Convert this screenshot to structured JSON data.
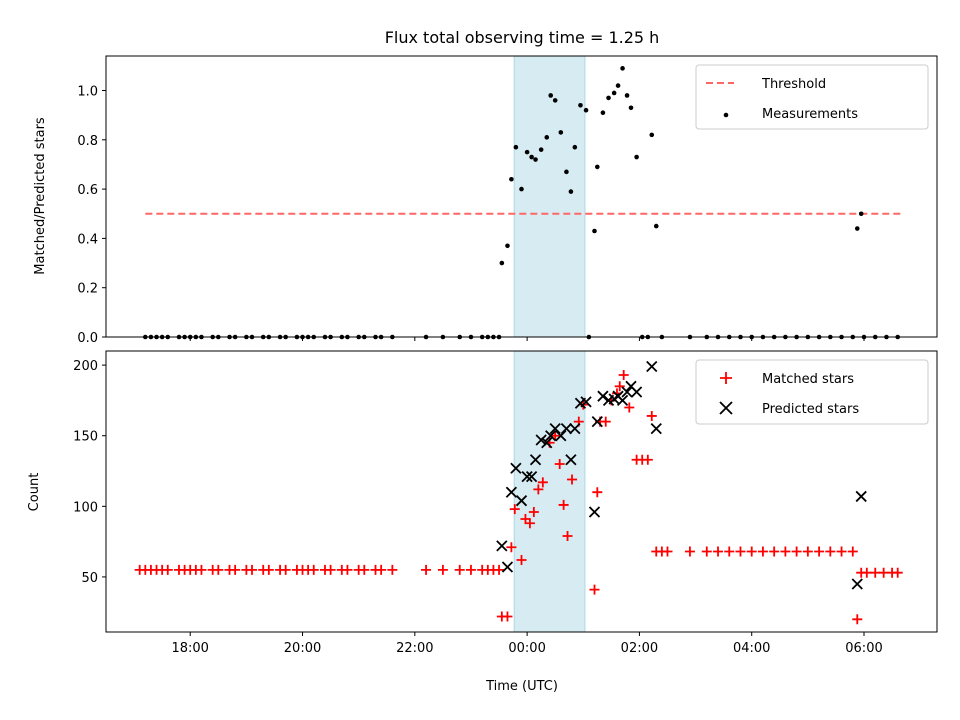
{
  "chart_data": [
    {
      "type": "scatter",
      "title": "Flux total observing time = 1.25 h",
      "ylabel": "Matched/Predicted stars",
      "xlabel": "",
      "xlim": [
        16.5,
        31.3
      ],
      "ylim": [
        0,
        1.14
      ],
      "yticks": [
        0,
        0.2,
        0.4,
        0.6,
        0.8,
        1.0
      ],
      "ytick_labels": [
        "0.0",
        "0.2",
        "0.4",
        "0.6",
        "0.8",
        "1.0"
      ],
      "xticks": [
        18,
        20,
        22,
        24,
        26,
        28,
        30
      ],
      "shaded_band": {
        "from": 23.77,
        "to": 25.03,
        "color": "#add8e6"
      },
      "threshold": {
        "name": "Threshold",
        "y": 0.5,
        "x_from": 17.2,
        "x_to": 30.7,
        "color": "#ff6666"
      },
      "series": [
        {
          "name": "Measurements",
          "color": "#000000",
          "points": [
            [
              17.2,
              0
            ],
            [
              17.3,
              0
            ],
            [
              17.4,
              0
            ],
            [
              17.5,
              0
            ],
            [
              17.6,
              0
            ],
            [
              17.8,
              0
            ],
            [
              17.9,
              0
            ],
            [
              18.0,
              0
            ],
            [
              18.1,
              0
            ],
            [
              18.2,
              0
            ],
            [
              18.4,
              0
            ],
            [
              18.5,
              0
            ],
            [
              18.7,
              0
            ],
            [
              18.8,
              0
            ],
            [
              19.0,
              0
            ],
            [
              19.1,
              0
            ],
            [
              19.3,
              0
            ],
            [
              19.4,
              0
            ],
            [
              19.6,
              0
            ],
            [
              19.7,
              0
            ],
            [
              19.9,
              0
            ],
            [
              20.0,
              0
            ],
            [
              20.1,
              0
            ],
            [
              20.2,
              0
            ],
            [
              20.4,
              0
            ],
            [
              20.5,
              0
            ],
            [
              20.7,
              0
            ],
            [
              20.8,
              0
            ],
            [
              21.0,
              0
            ],
            [
              21.1,
              0
            ],
            [
              21.3,
              0
            ],
            [
              21.4,
              0
            ],
            [
              21.6,
              0
            ],
            [
              22.2,
              0
            ],
            [
              22.5,
              0
            ],
            [
              22.8,
              0
            ],
            [
              23.0,
              0
            ],
            [
              23.2,
              0
            ],
            [
              23.3,
              0
            ],
            [
              23.4,
              0
            ],
            [
              23.5,
              0
            ],
            [
              23.55,
              0.3
            ],
            [
              23.65,
              0.37
            ],
            [
              23.72,
              0.64
            ],
            [
              23.8,
              0.77
            ],
            [
              23.9,
              0.6
            ],
            [
              24.0,
              0.75
            ],
            [
              24.08,
              0.73
            ],
            [
              24.15,
              0.72
            ],
            [
              24.25,
              0.76
            ],
            [
              24.35,
              0.81
            ],
            [
              24.42,
              0.98
            ],
            [
              24.5,
              0.96
            ],
            [
              24.6,
              0.83
            ],
            [
              24.7,
              0.67
            ],
            [
              24.78,
              0.59
            ],
            [
              24.85,
              0.77
            ],
            [
              24.95,
              0.94
            ],
            [
              25.05,
              0.92
            ],
            [
              25.2,
              0.43
            ],
            [
              25.25,
              0.69
            ],
            [
              25.35,
              0.91
            ],
            [
              25.45,
              0.97
            ],
            [
              25.55,
              0.99
            ],
            [
              25.62,
              1.02
            ],
            [
              25.7,
              1.09
            ],
            [
              25.78,
              0.98
            ],
            [
              25.85,
              0.93
            ],
            [
              25.95,
              0.73
            ],
            [
              26.22,
              0.82
            ],
            [
              26.3,
              0.45
            ],
            [
              25.1,
              0
            ],
            [
              26.05,
              0
            ],
            [
              26.15,
              0
            ],
            [
              26.4,
              0
            ],
            [
              26.9,
              0
            ],
            [
              27.2,
              0
            ],
            [
              27.4,
              0
            ],
            [
              27.6,
              0
            ],
            [
              27.8,
              0
            ],
            [
              28.0,
              0
            ],
            [
              28.2,
              0
            ],
            [
              28.4,
              0
            ],
            [
              28.6,
              0
            ],
            [
              28.8,
              0
            ],
            [
              29.0,
              0
            ],
            [
              29.2,
              0
            ],
            [
              29.4,
              0
            ],
            [
              29.6,
              0
            ],
            [
              29.8,
              0
            ],
            [
              29.88,
              0.44
            ],
            [
              29.95,
              0.5
            ],
            [
              30.0,
              0
            ],
            [
              30.2,
              0
            ],
            [
              30.4,
              0
            ],
            [
              30.6,
              0
            ]
          ]
        }
      ],
      "legend": {
        "placement": "top-right",
        "entries": [
          "Threshold",
          "Measurements"
        ]
      }
    },
    {
      "type": "scatter",
      "title": "",
      "ylabel": "Count",
      "xlabel": "Time (UTC)",
      "xlim": [
        16.5,
        31.3
      ],
      "ylim": [
        11,
        210
      ],
      "yticks": [
        50,
        100,
        150,
        200
      ],
      "ytick_labels": [
        "50",
        "100",
        "150",
        "200"
      ],
      "xticks": [
        18,
        20,
        22,
        24,
        26,
        28,
        30
      ],
      "xtick_labels": [
        "18:00",
        "20:00",
        "22:00",
        "00:00",
        "02:00",
        "04:00",
        "06:00"
      ],
      "shaded_band": {
        "from": 23.77,
        "to": 25.03,
        "color": "#add8e6"
      },
      "series": [
        {
          "name": "Matched stars",
          "marker": "+",
          "color": "#ff0000",
          "points": [
            [
              17.1,
              55
            ],
            [
              17.2,
              55
            ],
            [
              17.3,
              55
            ],
            [
              17.4,
              55
            ],
            [
              17.5,
              55
            ],
            [
              17.6,
              55
            ],
            [
              17.8,
              55
            ],
            [
              17.9,
              55
            ],
            [
              18.0,
              55
            ],
            [
              18.1,
              55
            ],
            [
              18.2,
              55
            ],
            [
              18.4,
              55
            ],
            [
              18.5,
              55
            ],
            [
              18.7,
              55
            ],
            [
              18.8,
              55
            ],
            [
              19.0,
              55
            ],
            [
              19.1,
              55
            ],
            [
              19.3,
              55
            ],
            [
              19.4,
              55
            ],
            [
              19.6,
              55
            ],
            [
              19.7,
              55
            ],
            [
              19.9,
              55
            ],
            [
              20.0,
              55
            ],
            [
              20.1,
              55
            ],
            [
              20.2,
              55
            ],
            [
              20.4,
              55
            ],
            [
              20.5,
              55
            ],
            [
              20.7,
              55
            ],
            [
              20.8,
              55
            ],
            [
              21.0,
              55
            ],
            [
              21.1,
              55
            ],
            [
              21.3,
              55
            ],
            [
              21.4,
              55
            ],
            [
              21.6,
              55
            ],
            [
              22.2,
              55
            ],
            [
              22.5,
              55
            ],
            [
              22.8,
              55
            ],
            [
              23.0,
              55
            ],
            [
              23.2,
              55
            ],
            [
              23.3,
              55
            ],
            [
              23.4,
              55
            ],
            [
              23.5,
              55
            ],
            [
              23.55,
              22
            ],
            [
              23.65,
              22
            ],
            [
              23.72,
              71
            ],
            [
              23.78,
              98
            ],
            [
              23.9,
              62
            ],
            [
              23.97,
              91
            ],
            [
              24.05,
              88
            ],
            [
              24.12,
              96
            ],
            [
              24.2,
              112
            ],
            [
              24.28,
              117
            ],
            [
              24.4,
              145
            ],
            [
              24.5,
              150
            ],
            [
              24.58,
              130
            ],
            [
              24.65,
              101
            ],
            [
              24.72,
              79
            ],
            [
              24.8,
              119
            ],
            [
              24.92,
              160
            ],
            [
              25.0,
              172
            ],
            [
              25.2,
              41
            ],
            [
              25.25,
              110
            ],
            [
              25.3,
              160
            ],
            [
              25.4,
              160
            ],
            [
              25.5,
              175
            ],
            [
              25.6,
              180
            ],
            [
              25.65,
              185
            ],
            [
              25.72,
              193
            ],
            [
              25.82,
              170
            ],
            [
              25.95,
              133
            ],
            [
              26.05,
              133
            ],
            [
              26.15,
              133
            ],
            [
              26.22,
              164
            ],
            [
              26.3,
              68
            ],
            [
              26.4,
              68
            ],
            [
              26.5,
              68
            ],
            [
              26.9,
              68
            ],
            [
              27.2,
              68
            ],
            [
              27.4,
              68
            ],
            [
              27.6,
              68
            ],
            [
              27.8,
              68
            ],
            [
              28.0,
              68
            ],
            [
              28.2,
              68
            ],
            [
              28.4,
              68
            ],
            [
              28.6,
              68
            ],
            [
              28.8,
              68
            ],
            [
              29.0,
              68
            ],
            [
              29.2,
              68
            ],
            [
              29.4,
              68
            ],
            [
              29.6,
              68
            ],
            [
              29.8,
              68
            ],
            [
              29.88,
              20
            ],
            [
              29.95,
              53
            ],
            [
              30.05,
              53
            ],
            [
              30.2,
              53
            ],
            [
              30.35,
              53
            ],
            [
              30.5,
              53
            ],
            [
              30.6,
              53
            ]
          ]
        },
        {
          "name": "Predicted stars",
          "marker": "x",
          "color": "#000000",
          "points": [
            [
              23.55,
              72
            ],
            [
              23.65,
              57
            ],
            [
              23.72,
              110
            ],
            [
              23.8,
              127
            ],
            [
              23.9,
              104
            ],
            [
              24.0,
              121
            ],
            [
              24.08,
              121
            ],
            [
              24.15,
              133
            ],
            [
              24.25,
              147
            ],
            [
              24.35,
              145
            ],
            [
              24.42,
              150
            ],
            [
              24.5,
              155
            ],
            [
              24.6,
              150
            ],
            [
              24.7,
              155
            ],
            [
              24.78,
              133
            ],
            [
              24.85,
              155
            ],
            [
              24.95,
              173
            ],
            [
              25.05,
              174
            ],
            [
              25.2,
              96
            ],
            [
              25.25,
              160
            ],
            [
              25.35,
              178
            ],
            [
              25.45,
              175
            ],
            [
              25.55,
              176
            ],
            [
              25.62,
              178
            ],
            [
              25.7,
              175
            ],
            [
              25.78,
              181
            ],
            [
              25.85,
              185
            ],
            [
              25.95,
              181
            ],
            [
              26.22,
              199
            ],
            [
              26.3,
              155
            ],
            [
              29.88,
              45
            ],
            [
              29.95,
              107
            ]
          ]
        }
      ],
      "legend": {
        "placement": "top-right",
        "entries": [
          "Matched stars",
          "Predicted stars"
        ]
      }
    }
  ]
}
